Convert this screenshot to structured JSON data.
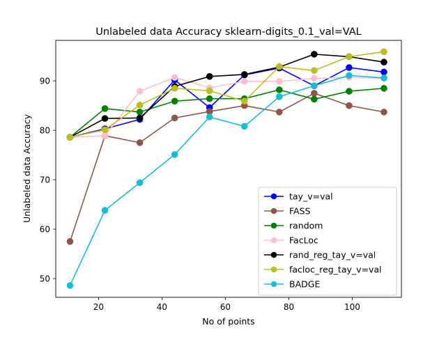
{
  "chart_data": {
    "type": "line",
    "title": "Unlabeled data Accuracy sklearn-digits_0.1_val=VAL",
    "xlabel": "No of points",
    "ylabel": "Unlabeled data Accuracy",
    "xlim": [
      6.5,
      115.5
    ],
    "ylim": [
      46.2,
      98.2
    ],
    "xticks": [
      20,
      40,
      60,
      80,
      100
    ],
    "yticks": [
      50,
      60,
      70,
      80,
      90
    ],
    "grid": false,
    "legend_position": "lower right",
    "x": [
      11,
      22,
      33,
      44,
      55,
      66,
      77,
      88,
      99,
      110
    ],
    "series": [
      {
        "name": "tay_v=val",
        "color": "#0000ff",
        "values": [
          78.6,
          80.3,
          82.2,
          90.2,
          84.6,
          91.2,
          92.6,
          89.0,
          92.7,
          91.8
        ]
      },
      {
        "name": "FASS",
        "color": "#8c564b",
        "values": [
          57.5,
          78.9,
          77.5,
          82.5,
          83.8,
          85.0,
          83.7,
          87.5,
          85.0,
          83.7
        ]
      },
      {
        "name": "random",
        "color": "#008000",
        "values": [
          78.6,
          84.4,
          83.7,
          85.9,
          86.4,
          86.4,
          88.2,
          86.3,
          87.9,
          88.5
        ]
      },
      {
        "name": "FacLoc",
        "color": "#ffc0cb",
        "values": [
          78.6,
          78.9,
          87.9,
          90.7,
          88.6,
          89.9,
          89.9,
          90.5,
          90.7,
          90.5
        ]
      },
      {
        "name": "rand_reg_tay_v=val",
        "color": "#000000",
        "values": [
          78.6,
          82.4,
          82.5,
          88.9,
          90.9,
          91.3,
          92.8,
          95.4,
          94.9,
          93.8
        ]
      },
      {
        "name": "facloc_reg_tay_v=val",
        "color": "#bcbd22",
        "values": [
          78.6,
          80.1,
          85.1,
          88.5,
          88.0,
          85.9,
          92.9,
          92.1,
          94.9,
          95.9
        ]
      },
      {
        "name": "BADGE",
        "color": "#17becf",
        "values": [
          48.6,
          63.8,
          69.4,
          75.1,
          82.7,
          80.8,
          86.8,
          89.0,
          91.1,
          90.6
        ]
      }
    ]
  }
}
